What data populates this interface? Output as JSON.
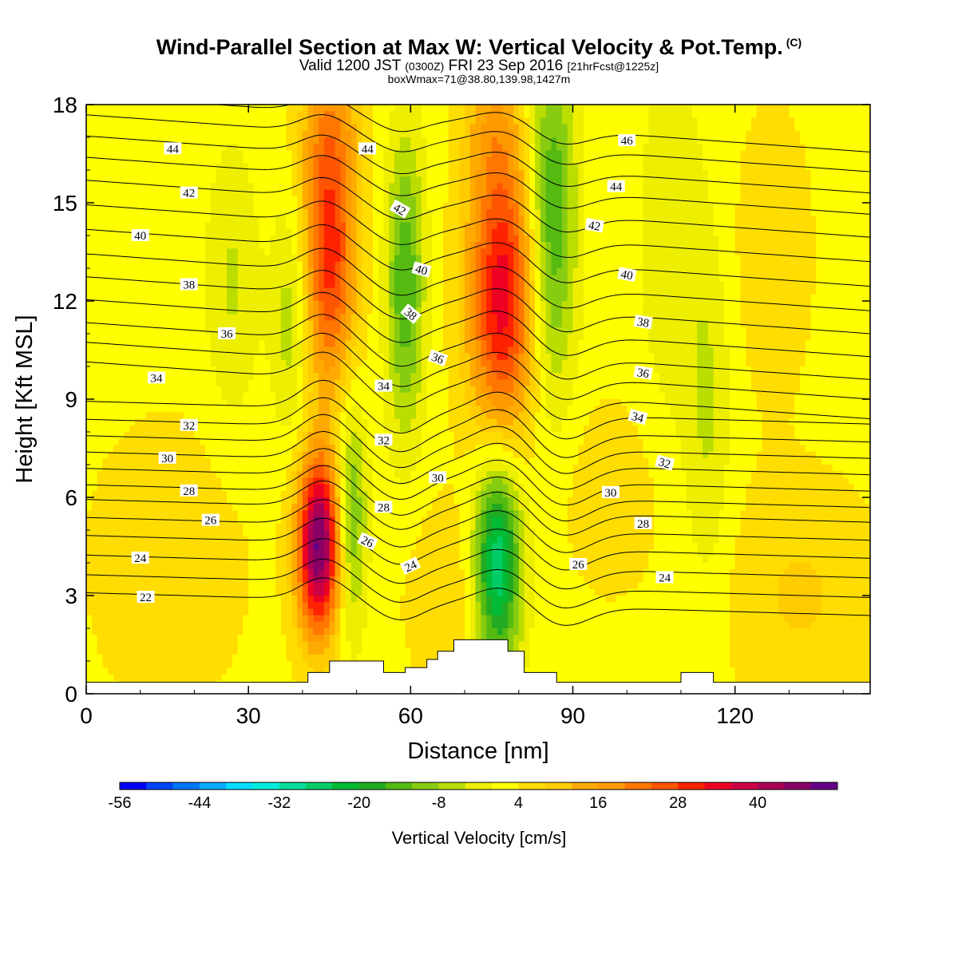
{
  "title": {
    "main": "Wind-Parallel Section at Max W: Vertical Velocity & Pot.Temp.",
    "copyright": "(C)",
    "valid_prefix": "Valid 1200 JST",
    "valid_utc": "(0300Z)",
    "valid_date": "FRI 23 Sep 2016",
    "forecast": "[21hrFcst@1225z]",
    "box": "boxWmax=71@38.80,139.98,1427m"
  },
  "chart_data": {
    "type": "heatmap",
    "xlabel": "Distance [nm]",
    "ylabel": "Height [Kft MSL]",
    "xlim": [
      0,
      145
    ],
    "ylim": [
      0,
      18
    ],
    "xticks": [
      0,
      30,
      60,
      90,
      120
    ],
    "yticks": [
      0,
      3,
      6,
      9,
      12,
      15,
      18
    ],
    "colorbar": {
      "title": "Vertical Velocity [cm/s]",
      "min": -56,
      "max": 48,
      "step": 4,
      "tick_values": [
        -56,
        -44,
        -32,
        -20,
        -8,
        4,
        16,
        28,
        40
      ],
      "tick_labels": [
        "-56",
        "-44",
        "-32",
        "-20",
        "-8",
        "4",
        "16",
        "28",
        "40"
      ],
      "colors": [
        "#0000ff",
        "#0044ff",
        "#0077ff",
        "#00aaff",
        "#00ddff",
        "#00eedd",
        "#00dd99",
        "#00cc66",
        "#00bb33",
        "#22aa22",
        "#55bb11",
        "#88cc11",
        "#bbdd00",
        "#eeee00",
        "#ffff00",
        "#ffdd00",
        "#ffcc00",
        "#ffaa00",
        "#ff9900",
        "#ff7700",
        "#ff5500",
        "#ff2200",
        "#ee0022",
        "#cc0044",
        "#aa0055",
        "#880066",
        "#660088"
      ]
    },
    "velocity_cells": [
      {
        "x": 45,
        "y": 13.5,
        "sx": 3.5,
        "sy": 3.0,
        "w": 28
      },
      {
        "x": 77,
        "y": 12.2,
        "sx": 4.5,
        "sy": 3.2,
        "w": 32
      },
      {
        "x": 43,
        "y": 4.5,
        "sx": 2.8,
        "sy": 1.9,
        "w": 46
      },
      {
        "x": 59,
        "y": 12.5,
        "sx": 2.5,
        "sy": 3.2,
        "w": -18
      },
      {
        "x": 86,
        "y": 14.5,
        "sx": 3.2,
        "sy": 3.8,
        "w": -20
      },
      {
        "x": 76,
        "y": 4.0,
        "sx": 3.2,
        "sy": 2.3,
        "w": -32
      },
      {
        "x": 49,
        "y": 5.5,
        "sx": 2.0,
        "sy": 2.5,
        "w": -16
      },
      {
        "x": 38,
        "y": 11.5,
        "sx": 2.5,
        "sy": 2.5,
        "w": -10
      },
      {
        "x": 27,
        "y": 12.5,
        "sx": 3.5,
        "sy": 3.0,
        "w": -7
      },
      {
        "x": 115,
        "y": 8.5,
        "sx": 3.0,
        "sy": 4.0,
        "w": -7
      },
      {
        "x": 108,
        "y": 14.0,
        "sx": 4.0,
        "sy": 4.0,
        "w": -6
      },
      {
        "x": 132,
        "y": 3.0,
        "sx": 10.0,
        "sy": 2.5,
        "w": 6
      },
      {
        "x": 15,
        "y": 4.0,
        "sx": 10.0,
        "sy": 3.0,
        "w": 5
      },
      {
        "x": 127,
        "y": 13.5,
        "sx": 5.0,
        "sy": 3.0,
        "w": 5
      },
      {
        "x": 97,
        "y": 6.0,
        "sx": 6.0,
        "sy": 2.0,
        "w": 5
      },
      {
        "x": 68,
        "y": 3.0,
        "sx": 6.0,
        "sy": 2.0,
        "w": 6
      },
      {
        "x": 45,
        "y": 17.5,
        "sx": 4.0,
        "sy": 1.5,
        "w": 8
      },
      {
        "x": 75,
        "y": 17.5,
        "sx": 4.0,
        "sy": 1.5,
        "w": 8
      }
    ],
    "terrain": [
      [
        0,
        0.35
      ],
      [
        41,
        0.35
      ],
      [
        41,
        0.65
      ],
      [
        45,
        0.65
      ],
      [
        45,
        1.0
      ],
      [
        55,
        1.0
      ],
      [
        55,
        0.65
      ],
      [
        59,
        0.65
      ],
      [
        59,
        0.8
      ],
      [
        63,
        0.8
      ],
      [
        63,
        1.05
      ],
      [
        65,
        1.05
      ],
      [
        65,
        1.3
      ],
      [
        68,
        1.3
      ],
      [
        68,
        1.65
      ],
      [
        78,
        1.65
      ],
      [
        78,
        1.3
      ],
      [
        81,
        1.3
      ],
      [
        81,
        0.65
      ],
      [
        87,
        0.65
      ],
      [
        87,
        0.35
      ],
      [
        110,
        0.35
      ],
      [
        110,
        0.65
      ],
      [
        116,
        0.65
      ],
      [
        116,
        0.35
      ],
      [
        145,
        0.35
      ]
    ],
    "theta_contours": [
      {
        "level": 22,
        "y": 2.75
      },
      {
        "level": 23,
        "y": 3.3
      },
      {
        "level": 24,
        "y": 3.9
      },
      {
        "level": 25,
        "y": 4.5
      },
      {
        "level": 26,
        "y": 5.05
      },
      {
        "level": 27,
        "y": 5.6
      },
      {
        "level": 28,
        "y": 6.05
      },
      {
        "level": 29,
        "y": 6.55
      },
      {
        "level": 30,
        "y": 7.05
      },
      {
        "level": 31,
        "y": 7.55
      },
      {
        "level": 32,
        "y": 8.05
      },
      {
        "level": 33,
        "y": 8.6
      },
      {
        "level": 34,
        "y": 9.3
      },
      {
        "level": 35,
        "y": 9.9
      },
      {
        "level": 36,
        "y": 10.5
      },
      {
        "level": 37,
        "y": 11.2
      },
      {
        "level": 38,
        "y": 11.9
      },
      {
        "level": 39,
        "y": 12.6
      },
      {
        "level": 40,
        "y": 13.35
      },
      {
        "level": 41,
        "y": 14.1
      },
      {
        "level": 42,
        "y": 14.85
      },
      {
        "level": 43,
        "y": 15.55
      },
      {
        "level": 44,
        "y": 16.2
      },
      {
        "level": 45,
        "y": 16.85
      },
      {
        "level": 46,
        "y": 17.45
      }
    ],
    "contour_labels": [
      {
        "text": "22",
        "x": 11,
        "y": 2.95,
        "rot": 0
      },
      {
        "text": "24",
        "x": 10,
        "y": 4.15,
        "rot": 0
      },
      {
        "text": "26",
        "x": 23,
        "y": 5.3,
        "rot": 0
      },
      {
        "text": "28",
        "x": 19,
        "y": 6.2,
        "rot": 0
      },
      {
        "text": "30",
        "x": 15,
        "y": 7.2,
        "rot": 0
      },
      {
        "text": "32",
        "x": 19,
        "y": 8.2,
        "rot": 0
      },
      {
        "text": "34",
        "x": 13,
        "y": 9.65,
        "rot": 0
      },
      {
        "text": "36",
        "x": 26,
        "y": 11.0,
        "rot": 0
      },
      {
        "text": "38",
        "x": 19,
        "y": 12.5,
        "rot": 0
      },
      {
        "text": "40",
        "x": 10,
        "y": 14.0,
        "rot": 0
      },
      {
        "text": "42",
        "x": 19,
        "y": 15.3,
        "rot": 0
      },
      {
        "text": "44",
        "x": 16,
        "y": 16.65,
        "rot": 0
      },
      {
        "text": "44",
        "x": 52,
        "y": 16.65,
        "rot": 0
      },
      {
        "text": "42",
        "x": 58,
        "y": 14.8,
        "rot": 30
      },
      {
        "text": "40",
        "x": 62,
        "y": 12.95,
        "rot": 15
      },
      {
        "text": "38",
        "x": 60,
        "y": 11.6,
        "rot": 40
      },
      {
        "text": "36",
        "x": 65,
        "y": 10.25,
        "rot": 20
      },
      {
        "text": "34",
        "x": 55,
        "y": 9.4,
        "rot": 0
      },
      {
        "text": "32",
        "x": 55,
        "y": 7.75,
        "rot": 0
      },
      {
        "text": "30",
        "x": 65,
        "y": 6.6,
        "rot": 0
      },
      {
        "text": "28",
        "x": 55,
        "y": 5.7,
        "rot": 0
      },
      {
        "text": "26",
        "x": 52,
        "y": 4.65,
        "rot": 25
      },
      {
        "text": "24",
        "x": 60,
        "y": 3.9,
        "rot": -25
      },
      {
        "text": "46",
        "x": 100,
        "y": 16.9,
        "rot": 0
      },
      {
        "text": "44",
        "x": 98,
        "y": 15.5,
        "rot": 0
      },
      {
        "text": "42",
        "x": 94,
        "y": 14.3,
        "rot": 10
      },
      {
        "text": "40",
        "x": 100,
        "y": 12.8,
        "rot": 10
      },
      {
        "text": "38",
        "x": 103,
        "y": 11.35,
        "rot": 10
      },
      {
        "text": "36",
        "x": 103,
        "y": 9.8,
        "rot": 10
      },
      {
        "text": "34",
        "x": 102,
        "y": 8.45,
        "rot": 15
      },
      {
        "text": "32",
        "x": 107,
        "y": 7.05,
        "rot": 15
      },
      {
        "text": "30",
        "x": 97,
        "y": 6.15,
        "rot": 0
      },
      {
        "text": "28",
        "x": 103,
        "y": 5.2,
        "rot": 0
      },
      {
        "text": "26",
        "x": 91,
        "y": 3.95,
        "rot": 0
      },
      {
        "text": "24",
        "x": 107,
        "y": 3.55,
        "rot": 0
      }
    ]
  }
}
